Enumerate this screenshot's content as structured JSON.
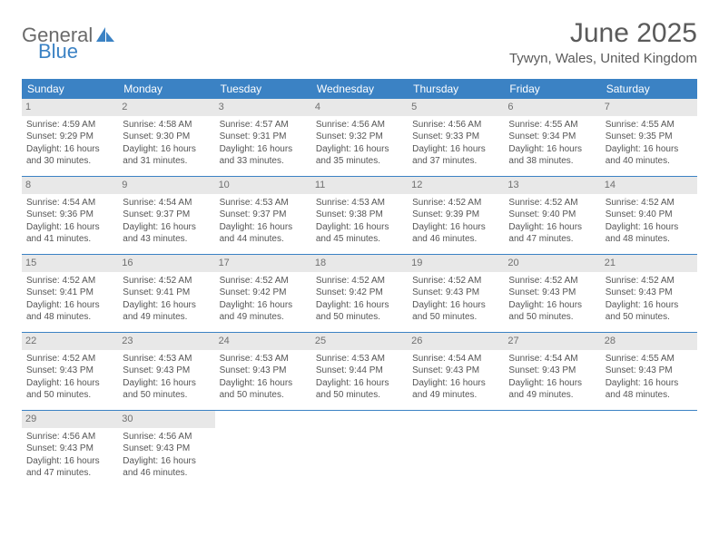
{
  "brand": {
    "word1": "General",
    "word2": "Blue"
  },
  "title": "June 2025",
  "location": "Tywyn, Wales, United Kingdom",
  "colors": {
    "header_bg": "#3b82c4",
    "header_text": "#ffffff",
    "daynum_bg": "#e8e8e8",
    "daynum_text": "#707070",
    "body_text": "#555555",
    "divider": "#3b82c4"
  },
  "weekdays": [
    "Sunday",
    "Monday",
    "Tuesday",
    "Wednesday",
    "Thursday",
    "Friday",
    "Saturday"
  ],
  "weeks": [
    [
      {
        "num": "1",
        "sunrise": "Sunrise: 4:59 AM",
        "sunset": "Sunset: 9:29 PM",
        "day1": "Daylight: 16 hours",
        "day2": "and 30 minutes."
      },
      {
        "num": "2",
        "sunrise": "Sunrise: 4:58 AM",
        "sunset": "Sunset: 9:30 PM",
        "day1": "Daylight: 16 hours",
        "day2": "and 31 minutes."
      },
      {
        "num": "3",
        "sunrise": "Sunrise: 4:57 AM",
        "sunset": "Sunset: 9:31 PM",
        "day1": "Daylight: 16 hours",
        "day2": "and 33 minutes."
      },
      {
        "num": "4",
        "sunrise": "Sunrise: 4:56 AM",
        "sunset": "Sunset: 9:32 PM",
        "day1": "Daylight: 16 hours",
        "day2": "and 35 minutes."
      },
      {
        "num": "5",
        "sunrise": "Sunrise: 4:56 AM",
        "sunset": "Sunset: 9:33 PM",
        "day1": "Daylight: 16 hours",
        "day2": "and 37 minutes."
      },
      {
        "num": "6",
        "sunrise": "Sunrise: 4:55 AM",
        "sunset": "Sunset: 9:34 PM",
        "day1": "Daylight: 16 hours",
        "day2": "and 38 minutes."
      },
      {
        "num": "7",
        "sunrise": "Sunrise: 4:55 AM",
        "sunset": "Sunset: 9:35 PM",
        "day1": "Daylight: 16 hours",
        "day2": "and 40 minutes."
      }
    ],
    [
      {
        "num": "8",
        "sunrise": "Sunrise: 4:54 AM",
        "sunset": "Sunset: 9:36 PM",
        "day1": "Daylight: 16 hours",
        "day2": "and 41 minutes."
      },
      {
        "num": "9",
        "sunrise": "Sunrise: 4:54 AM",
        "sunset": "Sunset: 9:37 PM",
        "day1": "Daylight: 16 hours",
        "day2": "and 43 minutes."
      },
      {
        "num": "10",
        "sunrise": "Sunrise: 4:53 AM",
        "sunset": "Sunset: 9:37 PM",
        "day1": "Daylight: 16 hours",
        "day2": "and 44 minutes."
      },
      {
        "num": "11",
        "sunrise": "Sunrise: 4:53 AM",
        "sunset": "Sunset: 9:38 PM",
        "day1": "Daylight: 16 hours",
        "day2": "and 45 minutes."
      },
      {
        "num": "12",
        "sunrise": "Sunrise: 4:52 AM",
        "sunset": "Sunset: 9:39 PM",
        "day1": "Daylight: 16 hours",
        "day2": "and 46 minutes."
      },
      {
        "num": "13",
        "sunrise": "Sunrise: 4:52 AM",
        "sunset": "Sunset: 9:40 PM",
        "day1": "Daylight: 16 hours",
        "day2": "and 47 minutes."
      },
      {
        "num": "14",
        "sunrise": "Sunrise: 4:52 AM",
        "sunset": "Sunset: 9:40 PM",
        "day1": "Daylight: 16 hours",
        "day2": "and 48 minutes."
      }
    ],
    [
      {
        "num": "15",
        "sunrise": "Sunrise: 4:52 AM",
        "sunset": "Sunset: 9:41 PM",
        "day1": "Daylight: 16 hours",
        "day2": "and 48 minutes."
      },
      {
        "num": "16",
        "sunrise": "Sunrise: 4:52 AM",
        "sunset": "Sunset: 9:41 PM",
        "day1": "Daylight: 16 hours",
        "day2": "and 49 minutes."
      },
      {
        "num": "17",
        "sunrise": "Sunrise: 4:52 AM",
        "sunset": "Sunset: 9:42 PM",
        "day1": "Daylight: 16 hours",
        "day2": "and 49 minutes."
      },
      {
        "num": "18",
        "sunrise": "Sunrise: 4:52 AM",
        "sunset": "Sunset: 9:42 PM",
        "day1": "Daylight: 16 hours",
        "day2": "and 50 minutes."
      },
      {
        "num": "19",
        "sunrise": "Sunrise: 4:52 AM",
        "sunset": "Sunset: 9:43 PM",
        "day1": "Daylight: 16 hours",
        "day2": "and 50 minutes."
      },
      {
        "num": "20",
        "sunrise": "Sunrise: 4:52 AM",
        "sunset": "Sunset: 9:43 PM",
        "day1": "Daylight: 16 hours",
        "day2": "and 50 minutes."
      },
      {
        "num": "21",
        "sunrise": "Sunrise: 4:52 AM",
        "sunset": "Sunset: 9:43 PM",
        "day1": "Daylight: 16 hours",
        "day2": "and 50 minutes."
      }
    ],
    [
      {
        "num": "22",
        "sunrise": "Sunrise: 4:52 AM",
        "sunset": "Sunset: 9:43 PM",
        "day1": "Daylight: 16 hours",
        "day2": "and 50 minutes."
      },
      {
        "num": "23",
        "sunrise": "Sunrise: 4:53 AM",
        "sunset": "Sunset: 9:43 PM",
        "day1": "Daylight: 16 hours",
        "day2": "and 50 minutes."
      },
      {
        "num": "24",
        "sunrise": "Sunrise: 4:53 AM",
        "sunset": "Sunset: 9:43 PM",
        "day1": "Daylight: 16 hours",
        "day2": "and 50 minutes."
      },
      {
        "num": "25",
        "sunrise": "Sunrise: 4:53 AM",
        "sunset": "Sunset: 9:44 PM",
        "day1": "Daylight: 16 hours",
        "day2": "and 50 minutes."
      },
      {
        "num": "26",
        "sunrise": "Sunrise: 4:54 AM",
        "sunset": "Sunset: 9:43 PM",
        "day1": "Daylight: 16 hours",
        "day2": "and 49 minutes."
      },
      {
        "num": "27",
        "sunrise": "Sunrise: 4:54 AM",
        "sunset": "Sunset: 9:43 PM",
        "day1": "Daylight: 16 hours",
        "day2": "and 49 minutes."
      },
      {
        "num": "28",
        "sunrise": "Sunrise: 4:55 AM",
        "sunset": "Sunset: 9:43 PM",
        "day1": "Daylight: 16 hours",
        "day2": "and 48 minutes."
      }
    ],
    [
      {
        "num": "29",
        "sunrise": "Sunrise: 4:56 AM",
        "sunset": "Sunset: 9:43 PM",
        "day1": "Daylight: 16 hours",
        "day2": "and 47 minutes."
      },
      {
        "num": "30",
        "sunrise": "Sunrise: 4:56 AM",
        "sunset": "Sunset: 9:43 PM",
        "day1": "Daylight: 16 hours",
        "day2": "and 46 minutes."
      },
      null,
      null,
      null,
      null,
      null
    ]
  ]
}
